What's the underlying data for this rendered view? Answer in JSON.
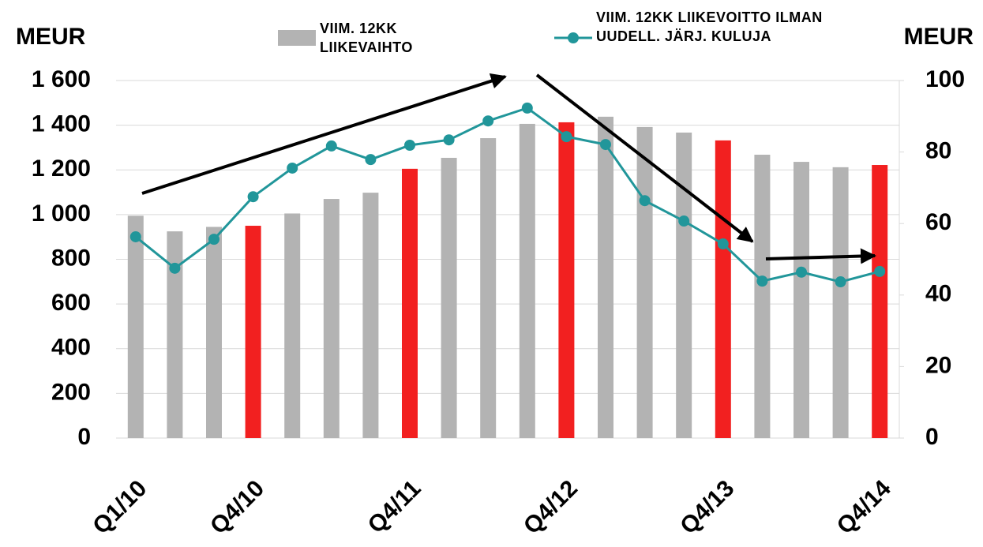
{
  "chart_data": {
    "type": "bar_line",
    "y_label": "MEUR",
    "y2_label": "MEUR",
    "categories": [
      "Q1/10",
      null,
      null,
      "Q4/10",
      null,
      null,
      null,
      "Q4/11",
      null,
      null,
      null,
      "Q4/12",
      null,
      null,
      null,
      "Q4/13",
      null,
      null,
      null,
      "Q4/14"
    ],
    "series": [
      {
        "name": "VIIM. 12KK LIIKEVAIHTO",
        "kind": "bar",
        "color": "#b3b3b3",
        "point_colors": [
          "#b3b3b3",
          "#b3b3b3",
          "#b3b3b3",
          "#f22020",
          "#b3b3b3",
          "#b3b3b3",
          "#b3b3b3",
          "#f22020",
          "#b3b3b3",
          "#b3b3b3",
          "#b3b3b3",
          "#f22020",
          "#b3b3b3",
          "#b3b3b3",
          "#b3b3b3",
          "#f22020",
          "#b3b3b3",
          "#b3b3b3",
          "#b3b3b3",
          "#f22020"
        ],
        "values": [
          995,
          925,
          945,
          950,
          1005,
          1070,
          1098,
          1205,
          1254,
          1342,
          1406,
          1413,
          1438,
          1392,
          1367,
          1332,
          1268,
          1236,
          1212,
          1222
        ]
      },
      {
        "name": "VIIM. 12KK LIIKEVOITTO ILMAN UUDELL. JÄRJ. KULUJA",
        "kind": "line",
        "axis": "y2",
        "color": "#21969a",
        "values": [
          56.3,
          47.5,
          55.6,
          67.5,
          75.5,
          81.7,
          77.9,
          81.9,
          83.4,
          88.7,
          92.3,
          84.3,
          82.1,
          66.4,
          60.7,
          54.3,
          43.9,
          46.4,
          43.7,
          46.6
        ]
      }
    ],
    "ylim": [
      0,
      1600
    ],
    "yticks": [
      0,
      200,
      400,
      600,
      800,
      {
        "value": 1000,
        "label": "1 000"
      },
      {
        "value": 1200,
        "label": "1 200"
      },
      {
        "value": 1400,
        "label": "1 400"
      },
      {
        "value": 1600,
        "label": "1 600"
      }
    ],
    "y2lim": [
      0,
      100
    ],
    "y2ticks": [
      0,
      20,
      40,
      60,
      80,
      100
    ],
    "grid": true
  }
}
